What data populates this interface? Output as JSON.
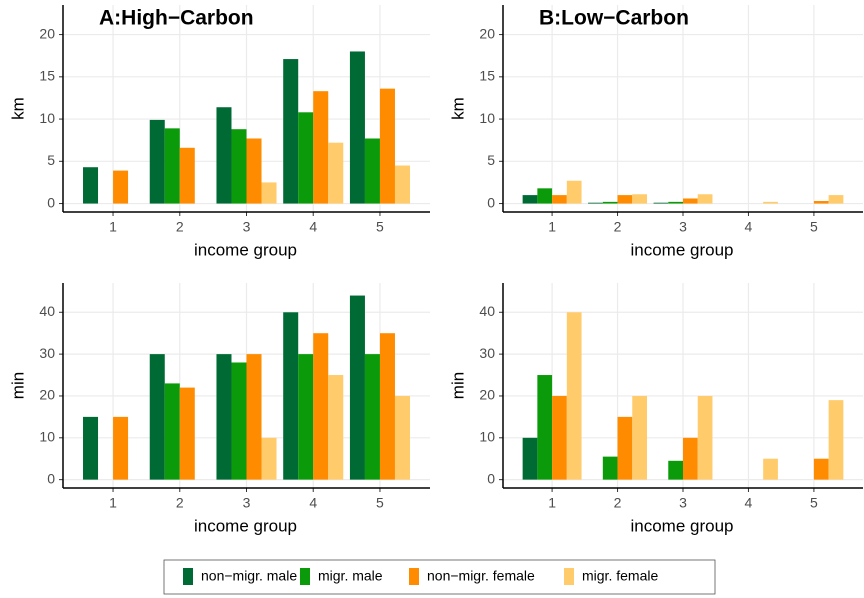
{
  "chart_data": [
    {
      "type": "bar",
      "title": "A:High−Carbon",
      "ylabel": "km",
      "xlabel": "income group",
      "categories": [
        "1",
        "2",
        "3",
        "4",
        "5"
      ],
      "series": [
        {
          "name": "non−migr. male",
          "color": "#006a35",
          "values": [
            4.3,
            9.9,
            11.4,
            17.1,
            18.0
          ]
        },
        {
          "name": "migr. male",
          "color": "#0a9a0a",
          "values": [
            0,
            8.9,
            8.8,
            10.8,
            7.7
          ]
        },
        {
          "name": "non−migr. female",
          "color": "#ff8c00",
          "values": [
            3.9,
            6.6,
            7.7,
            13.3,
            13.6
          ]
        },
        {
          "name": "migr. female",
          "color": "#ffcb6b",
          "values": [
            0,
            0,
            2.5,
            7.2,
            4.5
          ]
        }
      ],
      "ylim": [
        -1,
        23.5
      ],
      "yticks": [
        0,
        5,
        10,
        15,
        20
      ],
      "grid": true
    },
    {
      "type": "bar",
      "title": "B:Low−Carbon",
      "ylabel": "km",
      "xlabel": "income group",
      "categories": [
        "1",
        "2",
        "3",
        "4",
        "5"
      ],
      "series": [
        {
          "color": "#006a35",
          "values": [
            1.0,
            0.1,
            0.1,
            0,
            0
          ]
        },
        {
          "color": "#0a9a0a",
          "values": [
            1.8,
            0.2,
            0.2,
            0,
            0
          ]
        },
        {
          "color": "#ff8c00",
          "values": [
            1.0,
            1.0,
            0.6,
            0,
            0.3
          ]
        },
        {
          "color": "#ffcb6b",
          "values": [
            2.7,
            1.1,
            1.1,
            0.2,
            1.0
          ]
        }
      ],
      "ylim": [
        -1,
        23.5
      ],
      "yticks": [
        0,
        5,
        10,
        15,
        20
      ],
      "grid": true
    },
    {
      "type": "bar",
      "ylabel": "min",
      "xlabel": "income group",
      "categories": [
        "1",
        "2",
        "3",
        "4",
        "5"
      ],
      "series": [
        {
          "color": "#006a35",
          "values": [
            15,
            30,
            30,
            40,
            44
          ]
        },
        {
          "color": "#0a9a0a",
          "values": [
            0,
            23,
            28,
            30,
            30
          ]
        },
        {
          "color": "#ff8c00",
          "values": [
            15,
            22,
            30,
            35,
            35
          ]
        },
        {
          "color": "#ffcb6b",
          "values": [
            0,
            0,
            10,
            25,
            20
          ]
        }
      ],
      "ylim": [
        -2,
        47
      ],
      "yticks": [
        0,
        10,
        20,
        30,
        40
      ],
      "grid": true
    },
    {
      "type": "bar",
      "ylabel": "min",
      "xlabel": "income group",
      "categories": [
        "1",
        "2",
        "3",
        "4",
        "5"
      ],
      "series": [
        {
          "color": "#006a35",
          "values": [
            10,
            0,
            0,
            0,
            0
          ]
        },
        {
          "color": "#0a9a0a",
          "values": [
            25,
            5.5,
            4.5,
            0,
            0
          ]
        },
        {
          "color": "#ff8c00",
          "values": [
            20,
            15,
            10,
            0,
            5
          ]
        },
        {
          "color": "#ffcb6b",
          "values": [
            40,
            20,
            20,
            5,
            19
          ]
        }
      ],
      "ylim": [
        -2,
        47
      ],
      "yticks": [
        0,
        10,
        20,
        30,
        40
      ],
      "grid": true
    }
  ]
}
